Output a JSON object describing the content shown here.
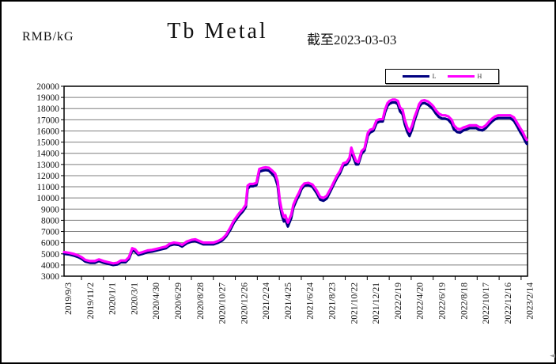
{
  "header": {
    "unit_label": "RMB/kG",
    "title": "Tb Metal",
    "as_of": "截至2023-03-03"
  },
  "legend": {
    "items": [
      {
        "label": "L",
        "color": "#000080"
      },
      {
        "label": "H",
        "color": "#FF00FF"
      }
    ]
  },
  "corner_glyph": "◄",
  "chart_data": {
    "type": "line",
    "title": "Tb Metal",
    "ylabel": "RMB/kG",
    "as_of_date": "2023-03-03",
    "ylim": [
      3000,
      20000
    ],
    "ytick_step": 1000,
    "grid": true,
    "grid_color": "#7f7f7f",
    "axis_color": "#000000",
    "legend_position": "top-right",
    "x_axis": {
      "start_date": "2019/9/3",
      "tick_interval_days": 60,
      "domain_days": [
        0,
        1265
      ],
      "tick_labels": [
        "2019/9/3",
        "2019/11/2",
        "2020/1/1",
        "2020/3/1",
        "2020/4/30",
        "2020/6/29",
        "2020/8/28",
        "2020/10/27",
        "2020/12/26",
        "2021/2/24",
        "2021/4/25",
        "2021/6/24",
        "2021/8/23",
        "2021/10/22",
        "2021/12/21",
        "2022/2/19",
        "2022/4/20",
        "2022/6/19",
        "2022/8/18",
        "2022/10/17",
        "2022/12/16",
        "2023/2/14"
      ]
    },
    "x_days": [
      0,
      13,
      26,
      39,
      48,
      58,
      71,
      84,
      95,
      108,
      121,
      134,
      145,
      155,
      168,
      177,
      186,
      194,
      203,
      214,
      228,
      240,
      253,
      265,
      278,
      288,
      300,
      313,
      322,
      335,
      348,
      358,
      369,
      380,
      393,
      408,
      421,
      432,
      442,
      453,
      464,
      477,
      488,
      496,
      501,
      507,
      516,
      525,
      533,
      542,
      550,
      559,
      568,
      576,
      583,
      589,
      594,
      600,
      604,
      611,
      620,
      626,
      635,
      641,
      648,
      656,
      667,
      678,
      689,
      699,
      708,
      717,
      727,
      736,
      745,
      753,
      762,
      771,
      779,
      784,
      790,
      797,
      803,
      812,
      820,
      829,
      835,
      844,
      853,
      861,
      870,
      876,
      883,
      889,
      896,
      904,
      911,
      917,
      924,
      930,
      937,
      943,
      950,
      956,
      963,
      969,
      976,
      984,
      993,
      1002,
      1008,
      1015,
      1023,
      1032,
      1040,
      1049,
      1058,
      1064,
      1073,
      1081,
      1090,
      1099,
      1107,
      1116,
      1125,
      1133,
      1142,
      1151,
      1159,
      1168,
      1177,
      1185,
      1196,
      1207,
      1218,
      1228,
      1237,
      1246,
      1252,
      1259,
      1263
    ],
    "series": [
      {
        "name": "L",
        "color": "#000080",
        "values": [
          5000,
          4950,
          4850,
          4700,
          4550,
          4300,
          4200,
          4200,
          4350,
          4200,
          4100,
          4000,
          4050,
          4250,
          4250,
          4550,
          5300,
          5200,
          4900,
          5000,
          5150,
          5200,
          5300,
          5400,
          5500,
          5750,
          5850,
          5800,
          5650,
          5950,
          6100,
          6150,
          6000,
          5850,
          5850,
          5850,
          6000,
          6200,
          6550,
          7100,
          7800,
          8400,
          8800,
          9200,
          10800,
          11050,
          11050,
          11150,
          12350,
          12450,
          12500,
          12450,
          12150,
          11850,
          11100,
          9400,
          8500,
          7900,
          8050,
          7450,
          8200,
          9150,
          9850,
          10200,
          10800,
          11100,
          11150,
          11000,
          10450,
          9850,
          9750,
          9950,
          10600,
          11200,
          11800,
          12200,
          12900,
          13000,
          13400,
          14250,
          13600,
          13000,
          13000,
          13950,
          14250,
          15550,
          15850,
          16000,
          16700,
          16850,
          16850,
          17650,
          18250,
          18450,
          18550,
          18550,
          18400,
          17750,
          17500,
          16600,
          15900,
          15550,
          16150,
          16900,
          17550,
          18150,
          18450,
          18500,
          18350,
          18100,
          17900,
          17550,
          17250,
          17100,
          17100,
          17000,
          16650,
          16150,
          15900,
          15850,
          16050,
          16150,
          16250,
          16250,
          16250,
          16100,
          16050,
          16250,
          16550,
          16850,
          17050,
          17150,
          17150,
          17150,
          17150,
          16900,
          16400,
          15850,
          15550,
          15050,
          14850
        ]
      },
      {
        "name": "H",
        "color": "#FF00FF",
        "values": [
          5150,
          5100,
          5000,
          4850,
          4700,
          4450,
          4350,
          4350,
          4500,
          4350,
          4250,
          4150,
          4200,
          4400,
          4400,
          4700,
          5500,
          5400,
          5050,
          5150,
          5300,
          5350,
          5450,
          5550,
          5650,
          5900,
          6000,
          5950,
          5800,
          6100,
          6250,
          6300,
          6150,
          6000,
          6000,
          6000,
          6150,
          6350,
          6700,
          7300,
          8000,
          8600,
          9000,
          9400,
          11100,
          11250,
          11250,
          11350,
          12600,
          12700,
          12750,
          12700,
          12450,
          12200,
          11500,
          9800,
          8900,
          8300,
          8450,
          7800,
          8500,
          9400,
          10100,
          10450,
          11000,
          11300,
          11350,
          11200,
          10700,
          10100,
          10000,
          10200,
          10800,
          11400,
          12000,
          12400,
          13100,
          13200,
          13600,
          14500,
          13900,
          13300,
          13200,
          14200,
          14450,
          15800,
          16100,
          16200,
          16950,
          17050,
          17050,
          17900,
          18500,
          18700,
          18800,
          18800,
          18700,
          18100,
          17900,
          17000,
          16300,
          15950,
          16500,
          17200,
          17800,
          18400,
          18700,
          18750,
          18650,
          18400,
          18200,
          17850,
          17550,
          17400,
          17400,
          17300,
          17000,
          16500,
          16200,
          16150,
          16300,
          16400,
          16500,
          16500,
          16500,
          16350,
          16300,
          16500,
          16800,
          17100,
          17300,
          17400,
          17400,
          17400,
          17400,
          17200,
          16700,
          16200,
          15900,
          15400,
          15200
        ]
      }
    ]
  }
}
